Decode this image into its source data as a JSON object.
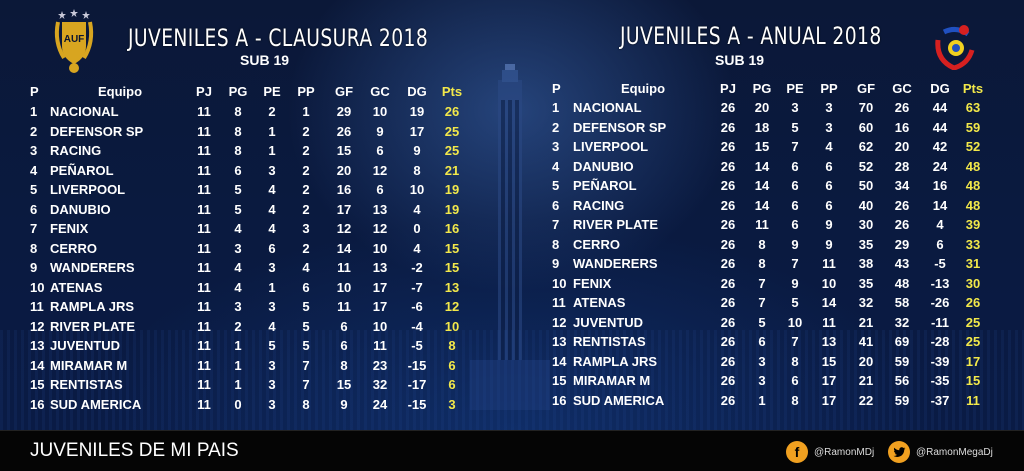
{
  "left": {
    "title": "JUVENILES A - CLAUSURA 2018",
    "subtitle": "SUB 19",
    "headers": [
      "P",
      "Equipo",
      "PJ",
      "PG",
      "PE",
      "PP",
      "GF",
      "GC",
      "DG",
      "Pts"
    ],
    "rows": [
      [
        "1",
        "NACIONAL",
        "11",
        "8",
        "2",
        "1",
        "29",
        "10",
        "19",
        "26"
      ],
      [
        "2",
        "DEFENSOR SP",
        "11",
        "8",
        "1",
        "2",
        "26",
        "9",
        "17",
        "25"
      ],
      [
        "3",
        "RACING",
        "11",
        "8",
        "1",
        "2",
        "15",
        "6",
        "9",
        "25"
      ],
      [
        "4",
        "PEÑAROL",
        "11",
        "6",
        "3",
        "2",
        "20",
        "12",
        "8",
        "21"
      ],
      [
        "5",
        "LIVERPOOL",
        "11",
        "5",
        "4",
        "2",
        "16",
        "6",
        "10",
        "19"
      ],
      [
        "6",
        "DANUBIO",
        "11",
        "5",
        "4",
        "2",
        "17",
        "13",
        "4",
        "19"
      ],
      [
        "7",
        "FENIX",
        "11",
        "4",
        "4",
        "3",
        "12",
        "12",
        "0",
        "16"
      ],
      [
        "8",
        "CERRO",
        "11",
        "3",
        "6",
        "2",
        "14",
        "10",
        "4",
        "15"
      ],
      [
        "9",
        "WANDERERS",
        "11",
        "4",
        "3",
        "4",
        "11",
        "13",
        "-2",
        "15"
      ],
      [
        "10",
        "ATENAS",
        "11",
        "4",
        "1",
        "6",
        "10",
        "17",
        "-7",
        "13"
      ],
      [
        "11",
        "RAMPLA JRS",
        "11",
        "3",
        "3",
        "5",
        "11",
        "17",
        "-6",
        "12"
      ],
      [
        "12",
        "RIVER PLATE",
        "11",
        "2",
        "4",
        "5",
        "6",
        "10",
        "-4",
        "10"
      ],
      [
        "13",
        "JUVENTUD",
        "11",
        "1",
        "5",
        "5",
        "6",
        "11",
        "-5",
        "8"
      ],
      [
        "14",
        "MIRAMAR M",
        "11",
        "1",
        "3",
        "7",
        "8",
        "23",
        "-15",
        "6"
      ],
      [
        "15",
        "RENTISTAS",
        "11",
        "1",
        "3",
        "7",
        "15",
        "32",
        "-17",
        "6"
      ],
      [
        "16",
        "SUD AMERICA",
        "11",
        "0",
        "3",
        "8",
        "9",
        "24",
        "-15",
        "3"
      ]
    ]
  },
  "right": {
    "title": "JUVENILES A - ANUAL 2018",
    "subtitle": "SUB 19",
    "headers": [
      "P",
      "Equipo",
      "PJ",
      "PG",
      "PE",
      "PP",
      "GF",
      "GC",
      "DG",
      "Pts"
    ],
    "rows": [
      [
        "1",
        "NACIONAL",
        "26",
        "20",
        "3",
        "3",
        "70",
        "26",
        "44",
        "63"
      ],
      [
        "2",
        "DEFENSOR SP",
        "26",
        "18",
        "5",
        "3",
        "60",
        "16",
        "44",
        "59"
      ],
      [
        "3",
        "LIVERPOOL",
        "26",
        "15",
        "7",
        "4",
        "62",
        "20",
        "42",
        "52"
      ],
      [
        "4",
        "DANUBIO",
        "26",
        "14",
        "6",
        "6",
        "52",
        "28",
        "24",
        "48"
      ],
      [
        "5",
        "PEÑAROL",
        "26",
        "14",
        "6",
        "6",
        "50",
        "34",
        "16",
        "48"
      ],
      [
        "6",
        "RACING",
        "26",
        "14",
        "6",
        "6",
        "40",
        "26",
        "14",
        "48"
      ],
      [
        "7",
        "RIVER PLATE",
        "26",
        "11",
        "6",
        "9",
        "30",
        "26",
        "4",
        "39"
      ],
      [
        "8",
        "CERRO",
        "26",
        "8",
        "9",
        "9",
        "35",
        "29",
        "6",
        "33"
      ],
      [
        "9",
        "WANDERERS",
        "26",
        "8",
        "7",
        "11",
        "38",
        "43",
        "-5",
        "31"
      ],
      [
        "10",
        "FENIX",
        "26",
        "7",
        "9",
        "10",
        "35",
        "48",
        "-13",
        "30"
      ],
      [
        "11",
        "ATENAS",
        "26",
        "7",
        "5",
        "14",
        "32",
        "58",
        "-26",
        "26"
      ],
      [
        "12",
        "JUVENTUD",
        "26",
        "5",
        "10",
        "11",
        "21",
        "32",
        "-11",
        "25"
      ],
      [
        "13",
        "RENTISTAS",
        "26",
        "6",
        "7",
        "13",
        "41",
        "69",
        "-28",
        "25"
      ],
      [
        "14",
        "RAMPLA JRS",
        "26",
        "3",
        "8",
        "15",
        "20",
        "59",
        "-39",
        "17"
      ],
      [
        "15",
        "MIRAMAR M",
        "26",
        "3",
        "6",
        "17",
        "21",
        "56",
        "-35",
        "15"
      ],
      [
        "16",
        "SUD AMERICA",
        "26",
        "1",
        "8",
        "17",
        "22",
        "59",
        "-37",
        "11"
      ]
    ]
  },
  "logos": {
    "left_emblem_text": "AUF",
    "left_emblem_icon": "auf-shield-icon",
    "right_emblem_icon": "baby-football-logo-icon"
  },
  "footer": {
    "title": "JUVENILES DE MI PAIS",
    "facebook_handle": "@RamonMDj",
    "twitter_handle": "@RamonMegaDj",
    "facebook_icon": "facebook-icon",
    "twitter_icon": "twitter-icon",
    "facebook_color": "#f0a020",
    "twitter_color": "#f0a020"
  },
  "colors": {
    "points": "#f2e84a",
    "text": "#ffffff",
    "background": "#0a1430"
  }
}
